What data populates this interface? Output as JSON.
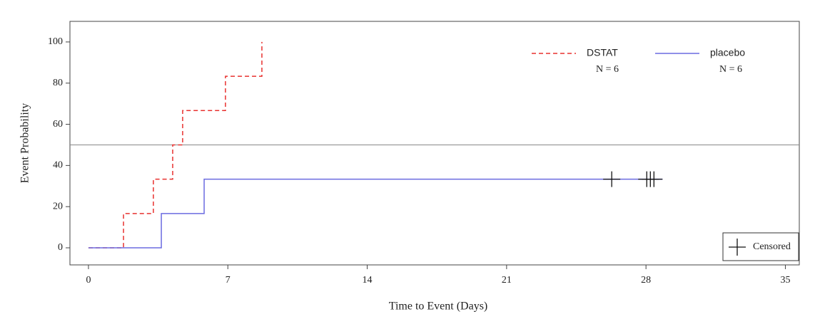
{
  "chart_data": {
    "type": "step",
    "xlabel": "Time to Event (Days)",
    "ylabel": "Event Probability",
    "xlim": [
      -0.93,
      35.7
    ],
    "xticks": [
      0,
      7,
      14,
      21,
      28,
      35
    ],
    "ylim": [
      -8.3,
      110
    ],
    "yticks": [
      0,
      20,
      40,
      60,
      80,
      100
    ],
    "reference_line": 50,
    "series": [
      {
        "name": "DSTAT",
        "color": "#e8312f",
        "dash": true,
        "n_label": "N = 6",
        "x": [
          0,
          1.76,
          3.26,
          4.23,
          4.73,
          6.88,
          8.71
        ],
        "values": [
          0,
          16.67,
          33.33,
          50,
          66.67,
          83.33,
          100
        ]
      },
      {
        "name": "placebo",
        "color": "#6b6be0",
        "dash": false,
        "n_label": "N = 6",
        "x": [
          0,
          3.66,
          5.81,
          28.83
        ],
        "values": [
          0,
          16.67,
          33.33,
          33.33
        ]
      }
    ],
    "censored": {
      "name": "Censored",
      "x": [
        26.28,
        28.04,
        28.22,
        28.4
      ],
      "values": [
        33.33,
        33.33,
        33.33,
        33.33
      ]
    }
  }
}
